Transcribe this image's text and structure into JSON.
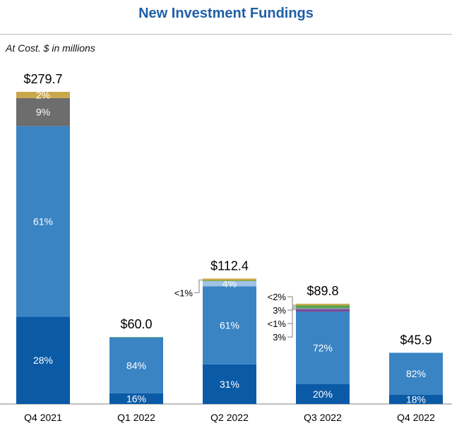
{
  "header": {
    "title": "New Investment Fundings",
    "subtitle": "At Cost. $ in millions"
  },
  "chart_data": {
    "type": "bar",
    "stacked": true,
    "title": "New Investment Fundings",
    "subtitle": "At Cost. $ in millions",
    "categories": [
      "Q4 2021",
      "Q1 2022",
      "Q2 2022",
      "Q3 2022",
      "Q4 2022"
    ],
    "totals": [
      279.7,
      60.0,
      112.4,
      89.8,
      45.9
    ],
    "total_labels": [
      "$279.7",
      "$60.0",
      "$112.4",
      "$89.8",
      "$45.9"
    ],
    "series_colors": [
      "#0b5aa6",
      "#3a84c4",
      "#9fc3e4",
      "#7f7f7f",
      "#c9a84c",
      "#5aa048",
      "#7a4f9a"
    ],
    "segments": [
      [
        {
          "value": 28,
          "label": "28%",
          "color": "#0b5aa6"
        },
        {
          "value": 61,
          "label": "61%",
          "color": "#3a84c4"
        },
        {
          "value": 9,
          "label": "9%",
          "color": "#6d6d6d"
        },
        {
          "value": 2,
          "label": "2%",
          "color": "#c9a84c"
        }
      ],
      [
        {
          "value": 16,
          "label": "16%",
          "color": "#0b5aa6"
        },
        {
          "value": 84,
          "label": "84%",
          "color": "#3a84c4"
        },
        {
          "value": 0.5,
          "label": "",
          "color": "#5aa048"
        }
      ],
      [
        {
          "value": 31,
          "label": "31%",
          "color": "#0b5aa6"
        },
        {
          "value": 61,
          "label": "61%",
          "color": "#3a84c4"
        },
        {
          "value": 4,
          "label": "4%",
          "color": "#9fc3e4"
        },
        {
          "value": 0.5,
          "label": "",
          "color": "#5aa048"
        },
        {
          "value": 1.5,
          "label": "",
          "color": "#c9a84c"
        }
      ],
      [
        {
          "value": 20,
          "label": "20%",
          "color": "#0b5aa6"
        },
        {
          "value": 72,
          "label": "72%",
          "color": "#3a84c4"
        },
        {
          "value": 3,
          "label": "",
          "color": "#7a4f9a"
        },
        {
          "value": 0.5,
          "label": "",
          "color": "#9fc3e4"
        },
        {
          "value": 3,
          "label": "",
          "color": "#5aa048"
        },
        {
          "value": 1.5,
          "label": "",
          "color": "#c9a84c"
        }
      ],
      [
        {
          "value": 18,
          "label": "18%",
          "color": "#0b5aa6"
        },
        {
          "value": 82,
          "label": "82%",
          "color": "#3a84c4"
        }
      ]
    ],
    "callouts": [
      {
        "bar": 2,
        "text": "<1%"
      },
      {
        "bar": 3,
        "text": "<2%"
      },
      {
        "bar": 3,
        "text": "3%"
      },
      {
        "bar": 3,
        "text": "<1%"
      },
      {
        "bar": 3,
        "text": "3%"
      }
    ],
    "ylim": [
      0,
      290
    ],
    "grid": false,
    "legend": "none"
  }
}
